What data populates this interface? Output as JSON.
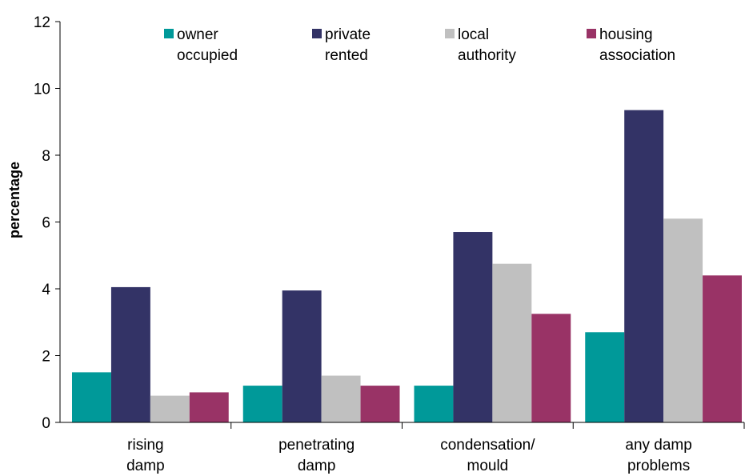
{
  "chart_data": {
    "type": "bar",
    "y_label": "percentage",
    "categories": [
      "rising\ndamp",
      "penetrating\ndamp",
      "condensation/\nmould",
      "any damp\nproblems"
    ],
    "series": [
      {
        "name": "owner\noccupied",
        "color": "#009999",
        "values": [
          1.5,
          1.1,
          1.1,
          2.7
        ]
      },
      {
        "name": "private\nrented",
        "color": "#333366",
        "values": [
          4.05,
          3.95,
          5.7,
          9.35
        ]
      },
      {
        "name": "local\nauthority",
        "color": "#c0c0c0",
        "values": [
          0.8,
          1.4,
          4.75,
          6.1
        ]
      },
      {
        "name": "housing\nassociation",
        "color": "#993366",
        "values": [
          0.9,
          1.1,
          3.25,
          4.4
        ]
      }
    ],
    "ylim": [
      0,
      12
    ],
    "yticks": [
      0,
      2,
      4,
      6,
      8,
      10,
      12
    ],
    "grid": false,
    "legend": "top"
  }
}
